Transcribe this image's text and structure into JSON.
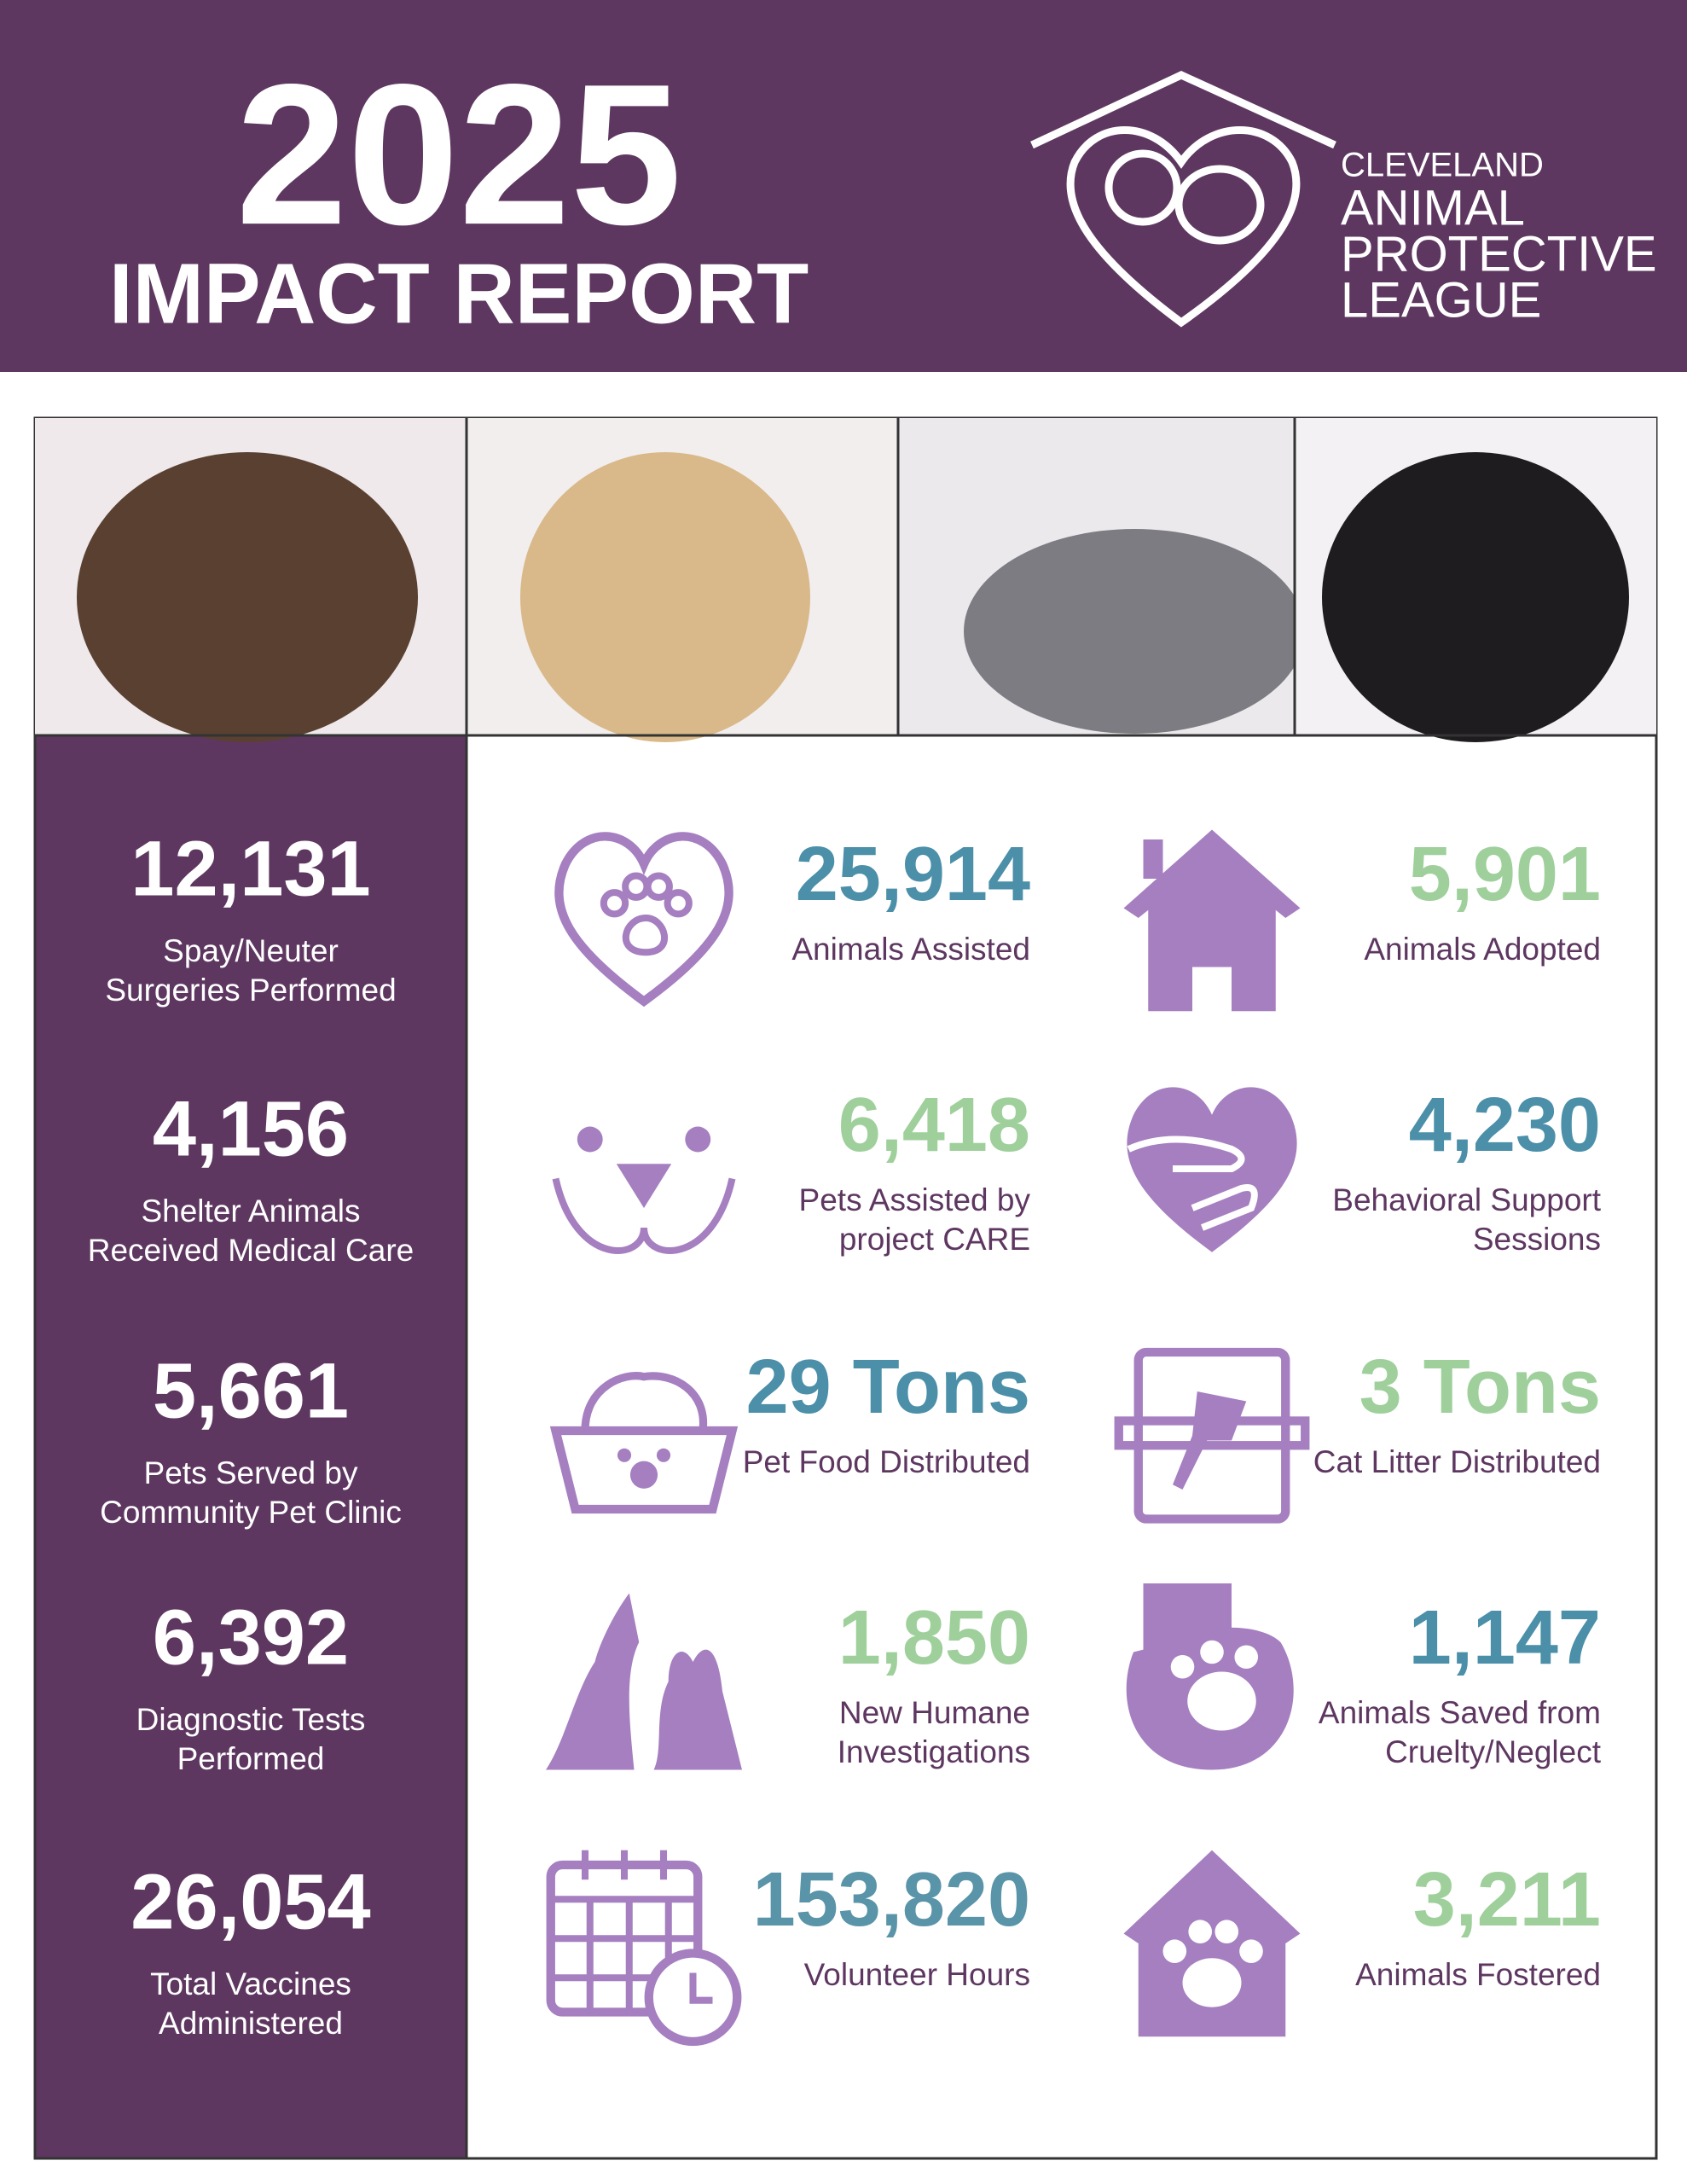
{
  "header": {
    "title": "2025",
    "subtitle": "IMPACT REPORT",
    "logo": [
      "CLEVELAND",
      "ANIMAL",
      "PROTECTIVE",
      "LEAGUE"
    ]
  },
  "sidebar": [
    {
      "value": "12,131",
      "label": [
        "Spay/Neuter",
        "Surgeries Performed"
      ]
    },
    {
      "value": "4,156",
      "label": [
        "Shelter Animals",
        "Received Medical Care"
      ]
    },
    {
      "value": "5,661",
      "label": [
        "Pets Served by",
        "Community Pet Clinic"
      ]
    },
    {
      "value": "6,392",
      "label": [
        "Diagnostic Tests",
        "Performed"
      ]
    },
    {
      "value": "26,054",
      "label": [
        "Total Vaccines",
        "Administered"
      ]
    }
  ],
  "stats": [
    {
      "value": "25,914",
      "label": [
        "Animals Assisted"
      ],
      "color": "#4b8fa8"
    },
    {
      "value": "5,901",
      "label": [
        "Animals Adopted"
      ],
      "color": "#9fd09c"
    },
    {
      "value": "6,418",
      "label": [
        "Pets Assisted by",
        "project CARE"
      ],
      "color": "#9fd09c"
    },
    {
      "value": "4,230",
      "label": [
        "Behavioral Support",
        "Sessions"
      ],
      "color": "#4b8fa8"
    },
    {
      "value": "29 Tons",
      "label": [
        "Pet Food Distributed"
      ],
      "color": "#4b8fa8"
    },
    {
      "value": "3 Tons",
      "label": [
        "Cat Litter Distributed"
      ],
      "color": "#9fd09c"
    },
    {
      "value": "1,850",
      "label": [
        "New Humane",
        "Investigations"
      ],
      "color": "#9fd09c"
    },
    {
      "value": "1,147",
      "label": [
        "Animals Saved from",
        "Cruelty/Neglect"
      ],
      "color": "#4b8fa8"
    },
    {
      "value": "153,820",
      "label": [
        "Volunteer Hours"
      ],
      "color": "#5a94a8"
    },
    {
      "value": "3,211",
      "label": [
        "Animals Fostered"
      ],
      "color": "#9fd09c"
    }
  ]
}
